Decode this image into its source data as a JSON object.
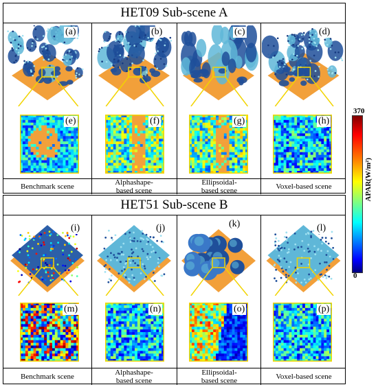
{
  "sections": [
    {
      "title": "HET09 Sub-scene A",
      "panels": [
        {
          "top": "(a)",
          "bottom": "(e)",
          "caption": "Benchmark scene"
        },
        {
          "top": "(b)",
          "bottom": "(f)",
          "caption": "Alphashape-based scene"
        },
        {
          "top": "(c)",
          "bottom": "(g)",
          "caption": "Ellipsoidal-based scene"
        },
        {
          "top": "(d)",
          "bottom": "(h)",
          "caption": "Voxel-based scene"
        }
      ]
    },
    {
      "title": "HET51 Sub-scene B",
      "panels": [
        {
          "top": "(i)",
          "bottom": "(m)",
          "caption": "Benchmark scene"
        },
        {
          "top": "(j)",
          "bottom": "(n)",
          "caption": "Alphashape-based scene"
        },
        {
          "top": "(k)",
          "bottom": "(o)",
          "caption": "Ellipsoidal-based scene"
        },
        {
          "top": "(l)",
          "bottom": "(p)",
          "caption": "Voxel-based scene"
        }
      ]
    }
  ],
  "colorbar": {
    "max": "370",
    "min": "0",
    "label": "APAR(W/m²)"
  },
  "colors": {
    "ground": "#f2a03a",
    "highlight": "#f2d400",
    "tree_dark": "#1f4f9a",
    "tree_light": "#5fb7d8"
  }
}
